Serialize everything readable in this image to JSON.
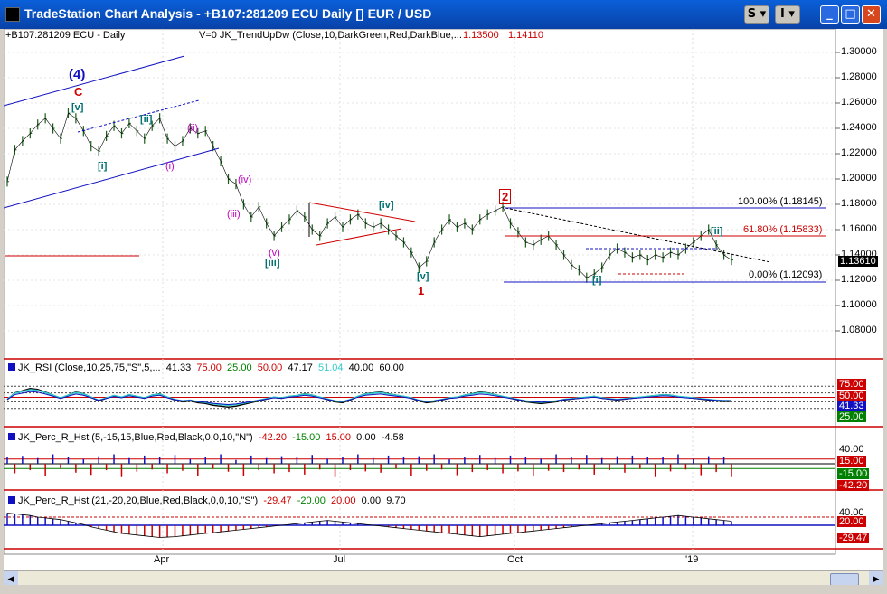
{
  "window": {
    "title": "TradeStation Chart Analysis - +B107:281209 ECU Daily [] EUR / USD",
    "btn_s": "S",
    "btn_i": "I"
  },
  "price_panel": {
    "symbol_label": "+B107:281209 ECU - Daily",
    "indicator_label": "V=0   JK_TrendUpDw (Close,10,DarkGreen,Red,DarkBlue,...",
    "value_1": "1.13500",
    "value_2": "1.14110",
    "axis_ticks": [
      "1.30000",
      "1.28000",
      "1.26000",
      "1.24000",
      "1.22000",
      "1.20000",
      "1.18000",
      "1.16000",
      "1.14000",
      "1.12000",
      "1.10000",
      "1.08000"
    ],
    "last_price": "1.13610",
    "fib_levels": [
      "100.00% (1.18145)",
      "61.80% (1.15833)",
      "0.00% (1.12093)"
    ]
  },
  "wave_labels": {
    "w4": "(4)",
    "c": "C",
    "v_top": "[v]",
    "ii_sq": "[ii]",
    "i_sq": "[i]",
    "i_paren": "(i)",
    "ii_paren": "(ii)",
    "iv_paren": "(iv)",
    "iii_paren": "(iii)",
    "v_paren": "(v)",
    "iii_sq": "[iii]",
    "iv_sq": "[iv]",
    "v_sq": "[v]",
    "one": "1",
    "two": "2",
    "i_sq_2": "[i]",
    "ii_sq_2": "[ii]"
  },
  "rsi_panel": {
    "label_name": "JK_RSI (Close,10,25,75,\"S\",5,...",
    "v1": "41.33",
    "v2": "75.00",
    "v3": "25.00",
    "v4": "50.00",
    "v5": "47.17",
    "v6": "51.04",
    "v7": "40.00",
    "v8": "60.00",
    "tag_75": "75.00",
    "tag_mid": "50.00",
    "tag_current": "41.33",
    "tag_25": "25.00"
  },
  "perc1_panel": {
    "label_name": "JK_Perc_R_Hst (5,-15,15,Blue,Red,Black,0,0,10,\"N\")",
    "v1": "-42.20",
    "v2": "-15.00",
    "v3": "15.00",
    "v4": "0.00",
    "v5": "-4.58",
    "tag_40": "40.00",
    "tag_15": "15.00",
    "tag_m15": "-15.00",
    "tag_m42": "-42.20"
  },
  "perc2_panel": {
    "label_name": "JK_Perc_R_Hst (21,-20,20,Blue,Red,Black,0,0,10,\"S\")",
    "v1": "-29.47",
    "v2": "-20.00",
    "v3": "20.00",
    "v4": "0.00",
    "v5": "9.70",
    "tag_40": "40.00",
    "tag_20": "20.00",
    "tag_m29": "-29.47"
  },
  "x_axis": {
    "months": [
      "Apr",
      "Jul",
      "Oct",
      "'19"
    ]
  },
  "colors": {
    "price_bars": "#1a5c1a",
    "wave_blue": "#1010c0",
    "wave_red": "#cc0000",
    "wave_teal": "#007070",
    "wave_magenta": "#c000c0",
    "fib_line": "#cc0000",
    "rsi_cyan": "#33cccc"
  },
  "series": {
    "price": [
      1.198,
      1.223,
      1.23,
      1.236,
      1.243,
      1.248,
      1.24,
      1.232,
      1.252,
      1.248,
      1.238,
      1.226,
      1.222,
      1.234,
      1.242,
      1.236,
      1.244,
      1.238,
      1.232,
      1.242,
      1.248,
      1.232,
      1.226,
      1.23,
      1.24,
      1.236,
      1.238,
      1.226,
      1.214,
      1.2,
      1.196,
      1.18,
      1.17,
      1.178,
      1.165,
      1.155,
      1.162,
      1.168,
      1.175,
      1.17,
      1.16,
      1.155,
      1.165,
      1.17,
      1.162,
      1.168,
      1.172,
      1.165,
      1.162,
      1.165,
      1.16,
      1.155,
      1.15,
      1.142,
      1.13,
      1.135,
      1.15,
      1.16,
      1.168,
      1.162,
      1.165,
      1.16,
      1.168,
      1.172,
      1.175,
      1.178,
      1.165,
      1.158,
      1.15,
      1.148,
      1.152,
      1.155,
      1.148,
      1.14,
      1.132,
      1.128,
      1.122,
      1.125,
      1.13,
      1.14,
      1.145,
      1.142,
      1.138,
      1.14,
      1.136,
      1.14,
      1.138,
      1.142,
      1.14,
      1.145,
      1.15,
      1.155,
      1.16,
      1.148,
      1.14,
      1.136
    ],
    "rsi": [
      45,
      60,
      65,
      70,
      68,
      62,
      55,
      48,
      55,
      62,
      58,
      50,
      42,
      48,
      54,
      50,
      56,
      52,
      48,
      55,
      58,
      50,
      44,
      40,
      42,
      38,
      36,
      32,
      30,
      28,
      30,
      34,
      38,
      42,
      46,
      50,
      48,
      52,
      54,
      58,
      55,
      50,
      45,
      40,
      38,
      44,
      52,
      58,
      60,
      62,
      58,
      55,
      52,
      48,
      42,
      38,
      40,
      44,
      48,
      50,
      55,
      58,
      62,
      60,
      56,
      52,
      48,
      44,
      40,
      38,
      36,
      38,
      40,
      44,
      46,
      48,
      50,
      52,
      48,
      46,
      44,
      46,
      48,
      50,
      52,
      54,
      56,
      55,
      52,
      50,
      48,
      46,
      44,
      42,
      41,
      41
    ],
    "perc_r1": [
      20,
      -30,
      25,
      -20,
      18,
      -40,
      30,
      -15,
      22,
      -28,
      15,
      -35,
      24,
      -20,
      30,
      -42,
      18,
      -25,
      26,
      -18,
      20,
      -30,
      28,
      -22,
      15,
      -38,
      22,
      -16,
      30,
      -25,
      12,
      -40,
      26,
      -20,
      18,
      -30,
      24,
      -26,
      20,
      -34,
      28,
      -18,
      16,
      -42,
      22,
      -20,
      30,
      -24,
      18,
      -28,
      26,
      -16,
      20,
      -40,
      24,
      -22,
      30,
      -18,
      14,
      -36,
      22,
      -26,
      28,
      -20,
      18,
      -30,
      26,
      -24,
      20,
      -38,
      16,
      -22,
      30,
      -26,
      22,
      -18,
      28,
      -34,
      18,
      -20,
      24,
      -28,
      26,
      -16,
      20,
      -42,
      22,
      -24,
      30,
      -18,
      16,
      -36,
      24,
      -26,
      20,
      -42
    ],
    "perc_r2": [
      30,
      28,
      26,
      24,
      20,
      18,
      16,
      14,
      10,
      6,
      2,
      -4,
      -8,
      -12,
      -16,
      -20,
      -22,
      -24,
      -26,
      -28,
      -30,
      -29,
      -28,
      -26,
      -24,
      -22,
      -20,
      -18,
      -16,
      -14,
      -12,
      -10,
      -8,
      -6,
      -4,
      -2,
      0,
      2,
      4,
      6,
      8,
      10,
      12,
      10,
      8,
      6,
      4,
      2,
      0,
      -2,
      -4,
      -6,
      -8,
      -10,
      -12,
      -14,
      -16,
      -18,
      -20,
      -22,
      -24,
      -26,
      -28,
      -26,
      -24,
      -22,
      -20,
      -18,
      -16,
      -14,
      -12,
      -10,
      -8,
      -6,
      -4,
      -2,
      0,
      2,
      4,
      6,
      8,
      10,
      12,
      14,
      16,
      18,
      20,
      22,
      24,
      22,
      20,
      18,
      16,
      14,
      12,
      10
    ]
  }
}
